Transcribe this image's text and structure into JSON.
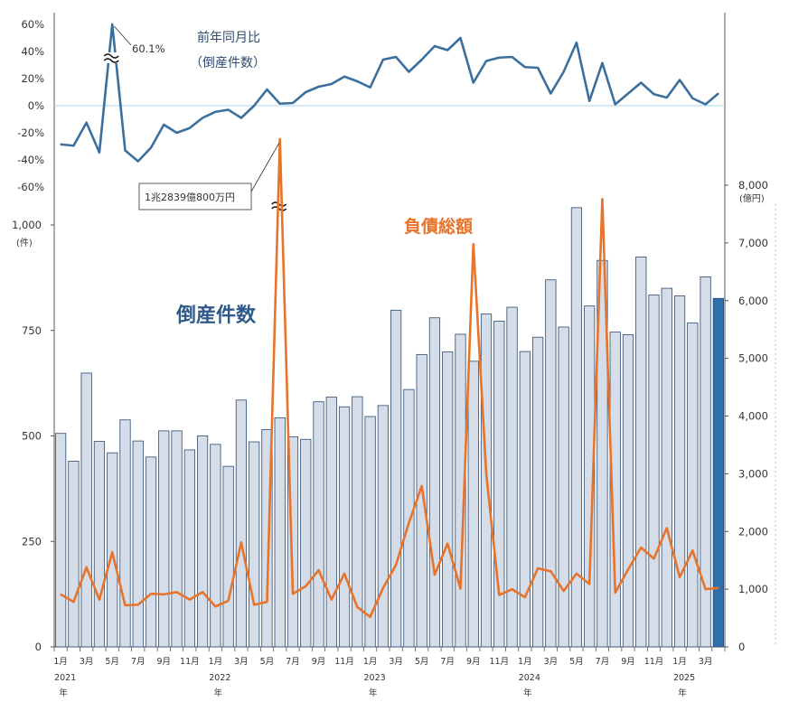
{
  "chart_data": [
    {
      "type": "line",
      "title": "前年同月比",
      "subtitle": "（倒産件数）",
      "ylim": [
        -60,
        60
      ],
      "yticks": [
        "60%",
        "40%",
        "20%",
        "0%",
        "-20%",
        "-40%",
        "-60%"
      ],
      "annotation": "60.1%",
      "color": "#3a6f9e",
      "values": [
        -28.5,
        -29.5,
        -12.5,
        -34.5,
        60.1,
        -33,
        -41,
        -31,
        -14,
        -20,
        -16.5,
        -9,
        -4.5,
        -3,
        -9,
        0,
        12,
        1.5,
        2,
        10,
        14,
        16,
        21.5,
        18,
        13.5,
        34,
        36,
        25,
        34,
        44,
        41,
        50,
        17,
        33,
        35.5,
        36,
        28.5,
        28,
        9,
        25,
        46.5,
        3.5,
        31.5,
        1,
        9,
        17,
        8.5,
        6,
        19,
        5.5,
        1,
        9
      ]
    },
    {
      "type": "bar",
      "series_name": "倒産件数",
      "unit": "(件)",
      "ylim": [
        0,
        1000
      ],
      "yticks": [
        "1,000",
        "750",
        "500",
        "250",
        "0"
      ],
      "color": "#d5dde8",
      "last_color": "#2e6fae",
      "values": [
        506,
        440,
        649,
        487,
        460,
        538,
        488,
        450,
        512,
        512,
        467,
        500,
        480,
        428,
        585,
        486,
        515,
        543,
        498,
        492,
        581,
        592,
        569,
        593,
        546,
        572,
        798,
        610,
        693,
        780,
        699,
        741,
        677,
        789,
        772,
        805,
        700,
        734,
        870,
        758,
        1041,
        808,
        916,
        746,
        740,
        924,
        834,
        850,
        832,
        768,
        877,
        826
      ]
    },
    {
      "type": "line",
      "series_name": "負債総額",
      "unit": "(億円)",
      "ylim": [
        0,
        8000
      ],
      "yticks": [
        "8,000",
        "7,000",
        "6,000",
        "5,000",
        "4,000",
        "3,000",
        "2,000",
        "1,000",
        "0"
      ],
      "annotation": "1兆2839億800万円",
      "color": "#e8732a",
      "values": [
        910,
        780,
        1380,
        820,
        1640,
        720,
        730,
        920,
        910,
        950,
        820,
        950,
        700,
        800,
        1810,
        730,
        780,
        8800,
        920,
        1050,
        1330,
        820,
        1270,
        690,
        520,
        1020,
        1420,
        2150,
        2790,
        1250,
        1790,
        1010,
        6980,
        3000,
        900,
        1000,
        860,
        1360,
        1310,
        970,
        1270,
        1090,
        7760,
        940,
        1340,
        1720,
        1530,
        2060,
        1210,
        1670,
        1000,
        1020
      ]
    },
    {
      "type": "axis",
      "x_month_labels": [
        "1月",
        "",
        "3月",
        "",
        "5月",
        "",
        "7月",
        "",
        "9月",
        "",
        "11月",
        "",
        "1月",
        "",
        "3月",
        "",
        "5月",
        "",
        "7月",
        "",
        "9月",
        "",
        "11月",
        "",
        "1月",
        "",
        "3月",
        "",
        "5月",
        "",
        "7月",
        "",
        "9月",
        "",
        "11月",
        "",
        "1月",
        "",
        "3月",
        "",
        "5月",
        "",
        "7月",
        "",
        "9月",
        "",
        "11月",
        "",
        "1月",
        "",
        "3月",
        ""
      ],
      "years": [
        {
          "label": "2021",
          "suffix": "年",
          "index": 0
        },
        {
          "label": "2022",
          "suffix": "年",
          "index": 12
        },
        {
          "label": "2023",
          "suffix": "年",
          "index": 24
        },
        {
          "label": "2024",
          "suffix": "年",
          "index": 36
        },
        {
          "label": "2025",
          "suffix": "年",
          "index": 48
        }
      ]
    }
  ]
}
